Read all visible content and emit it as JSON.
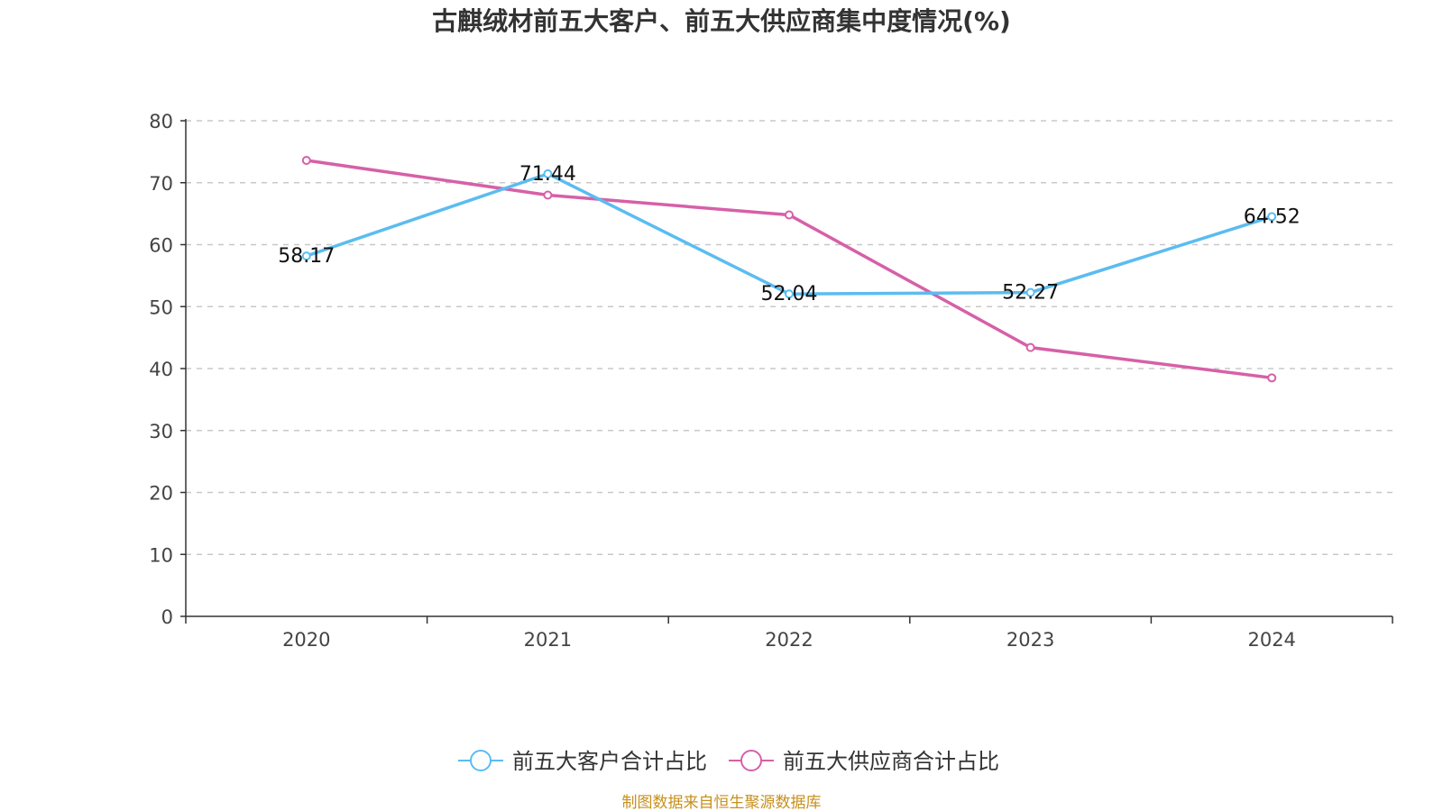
{
  "chart_data": {
    "type": "line",
    "title": "古麒绒材前五大客户、前五大供应商集中度情况(%)",
    "categories": [
      "2020",
      "2021",
      "2022",
      "2023",
      "2024"
    ],
    "ylim": [
      0,
      80
    ],
    "yticks": [
      0,
      10,
      20,
      30,
      40,
      50,
      60,
      70,
      80
    ],
    "grid": true,
    "legend_position": "bottom-center",
    "series": [
      {
        "name": "前五大客户合计占比",
        "color": "#5bbcf0",
        "values": [
          58.17,
          71.44,
          52.04,
          52.27,
          64.52
        ],
        "labels_shown": true
      },
      {
        "name": "前五大供应商合计占比",
        "color": "#d660a8",
        "values": [
          73.6,
          68.0,
          64.8,
          43.4,
          38.5
        ],
        "labels_shown": false
      }
    ],
    "source": "制图数据来自恒生聚源数据库",
    "source_color": "#c8901c"
  }
}
